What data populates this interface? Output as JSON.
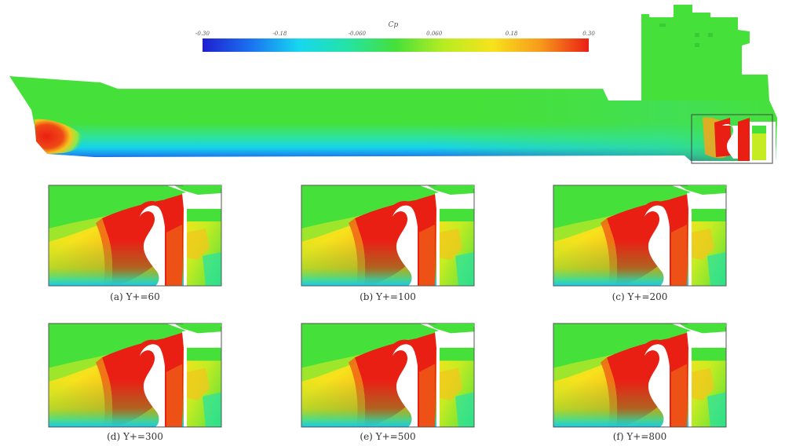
{
  "figure": {
    "colorbar": {
      "title": "Cp",
      "ticks": [
        "-0.30",
        "-0.18",
        "-0.060",
        "0.060",
        "0.18",
        "0.30"
      ],
      "min": -0.3,
      "max": 0.3,
      "stops": [
        "#1f1fd0",
        "#1a72f0",
        "#17d7f0",
        "#24e3a6",
        "#46e03a",
        "#b8ec22",
        "#f7e21c",
        "#f79a1c",
        "#ea1f14"
      ]
    },
    "panels": [
      {
        "caption": "(a) Y+=60"
      },
      {
        "caption": "(b) Y+=100"
      },
      {
        "caption": "(c) Y+=200"
      },
      {
        "caption": "(d) Y+=300"
      },
      {
        "caption": "(e) Y+=500"
      },
      {
        "caption": "(f) Y+=800"
      }
    ]
  }
}
